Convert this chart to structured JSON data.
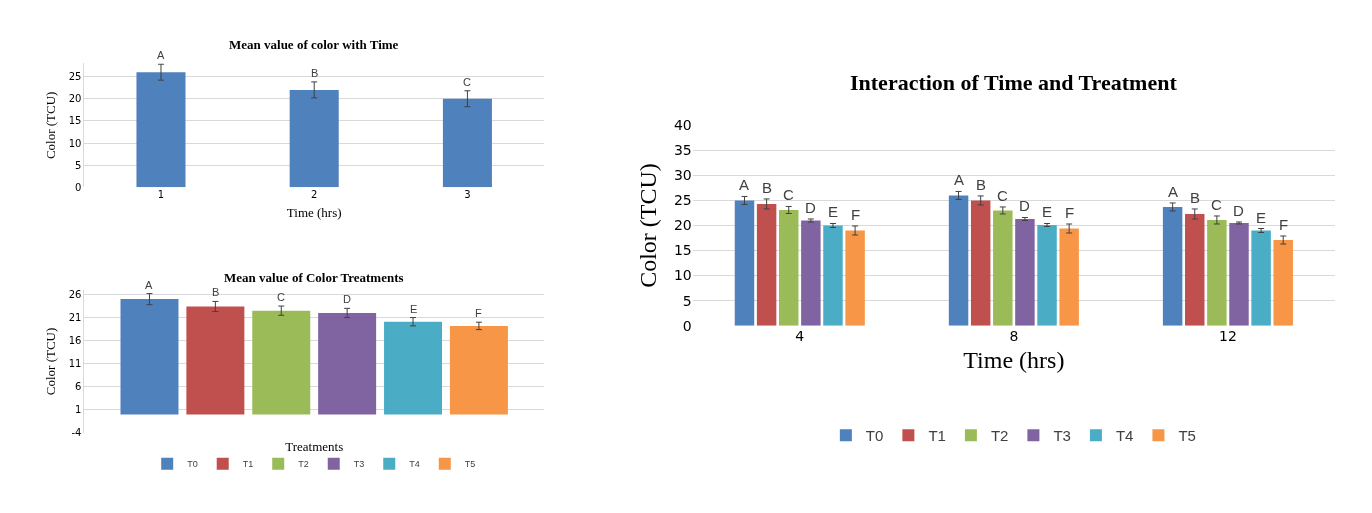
{
  "chart_data": [
    {
      "type": "bar",
      "title": "Mean value of color with Time",
      "xlabel": "Time (hrs)",
      "ylabel": "Color (TCU)",
      "categories": [
        "1",
        "2",
        "3"
      ],
      "values": [
        26,
        22,
        20
      ],
      "errors": [
        1.8,
        1.8,
        1.8
      ],
      "value_labels": [
        "A",
        "B",
        "C"
      ],
      "color": "#4f81bd",
      "ylim": [
        0,
        28
      ],
      "yticks": [
        0,
        5,
        10,
        15,
        20,
        25
      ],
      "grid": "y",
      "legend": false
    },
    {
      "type": "bar",
      "title": "Mean value of Color Treatments",
      "xlabel": "Treatments",
      "ylabel": "Color (TCU)",
      "categories": [
        null
      ],
      "series": [
        {
          "name": "T0",
          "color": "#4f81bd",
          "values": [
            25
          ],
          "errors": [
            1.2
          ],
          "value_labels": [
            "A"
          ]
        },
        {
          "name": "T1",
          "color": "#c0504d",
          "values": [
            23.4
          ],
          "errors": [
            1.1
          ],
          "value_labels": [
            "B"
          ]
        },
        {
          "name": "T2",
          "color": "#9bbb59",
          "values": [
            22.5
          ],
          "errors": [
            1.0
          ],
          "value_labels": [
            "C"
          ]
        },
        {
          "name": "T3",
          "color": "#8064a2",
          "values": [
            22
          ],
          "errors": [
            1.0
          ],
          "value_labels": [
            "D"
          ]
        },
        {
          "name": "T4",
          "color": "#4bacc6",
          "values": [
            20.1
          ],
          "errors": [
            0.9
          ],
          "value_labels": [
            "E"
          ]
        },
        {
          "name": "T5",
          "color": "#f79646",
          "values": [
            19.2
          ],
          "errors": [
            0.8
          ],
          "value_labels": [
            "F"
          ]
        }
      ],
      "ylim": [
        -4,
        27
      ],
      "yticks": [
        -4,
        1,
        6,
        11,
        16,
        21,
        26
      ],
      "grid": "y",
      "legend": "bottom"
    },
    {
      "type": "bar",
      "title": "Interaction of Time and Treatment",
      "xlabel": "Time (hrs)",
      "ylabel": "Color (TCU)",
      "categories": [
        "4",
        "8",
        "12"
      ],
      "series": [
        {
          "name": "T0",
          "color": "#4f81bd",
          "values": [
            25,
            26,
            23.7
          ],
          "errors": [
            0.8,
            0.8,
            0.8
          ],
          "value_labels": [
            "A",
            "A",
            "A"
          ]
        },
        {
          "name": "T1",
          "color": "#c0504d",
          "values": [
            24.3,
            25,
            22.3
          ],
          "errors": [
            1.0,
            0.9,
            1.0
          ],
          "value_labels": [
            "B",
            "B",
            "B"
          ]
        },
        {
          "name": "T2",
          "color": "#9bbb59",
          "values": [
            23.1,
            23,
            21.1
          ],
          "errors": [
            0.7,
            0.7,
            0.8
          ],
          "value_labels": [
            "C",
            "C",
            "C"
          ]
        },
        {
          "name": "T3",
          "color": "#8064a2",
          "values": [
            21,
            21.3,
            20.5
          ],
          "errors": [
            0.3,
            0.3,
            0.2
          ],
          "value_labels": [
            "D",
            "D",
            "D"
          ]
        },
        {
          "name": "T4",
          "color": "#4bacc6",
          "values": [
            20,
            20.1,
            19
          ],
          "errors": [
            0.4,
            0.3,
            0.4
          ],
          "value_labels": [
            "E",
            "E",
            "E"
          ]
        },
        {
          "name": "T5",
          "color": "#f79646",
          "values": [
            19,
            19.4,
            17.1
          ],
          "errors": [
            0.9,
            0.9,
            0.8
          ],
          "value_labels": [
            "F",
            "F",
            "F"
          ]
        }
      ],
      "ylim": [
        0,
        40
      ],
      "yticks": [
        0,
        5,
        10,
        15,
        20,
        25,
        30,
        35,
        40
      ],
      "grid": "y",
      "legend": "bottom"
    }
  ]
}
